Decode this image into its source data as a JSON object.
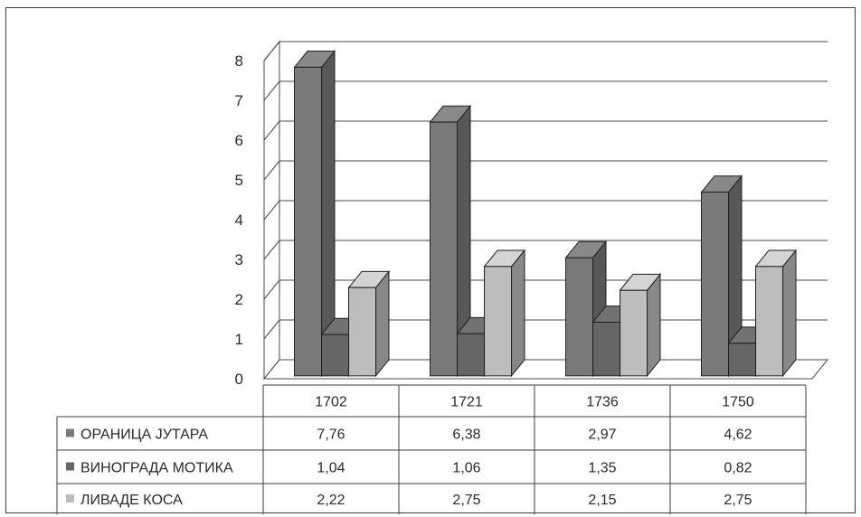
{
  "chart_data": {
    "type": "bar",
    "categories": [
      "1702",
      "1721",
      "1736",
      "1750"
    ],
    "series": [
      {
        "name": "ОРАНИЦА ЈУТАРА",
        "values": [
          7.76,
          6.38,
          2.97,
          4.62
        ],
        "value_labels": [
          "7,76",
          "6,38",
          "2,97",
          "4,62"
        ],
        "color": "#7a7a7a"
      },
      {
        "name": "ВИНОГРАДА МОТИКА",
        "values": [
          1.04,
          1.06,
          1.35,
          0.82
        ],
        "value_labels": [
          "1,04",
          "1,06",
          "1,35",
          "0,82"
        ],
        "color": "#666666"
      },
      {
        "name": "ЛИВАДЕ КОСА",
        "values": [
          2.22,
          2.75,
          2.15,
          2.75
        ],
        "value_labels": [
          "2,22",
          "2,75",
          "2,15",
          "2,75"
        ],
        "color": "#bdbdbd"
      }
    ],
    "ylim": [
      0,
      8
    ],
    "yticks": [
      "0",
      "1",
      "2",
      "3",
      "4",
      "5",
      "6",
      "7",
      "8"
    ],
    "grid": true,
    "three_d": true,
    "legend": "data-table-left",
    "title": "",
    "xlabel": "",
    "ylabel": ""
  }
}
